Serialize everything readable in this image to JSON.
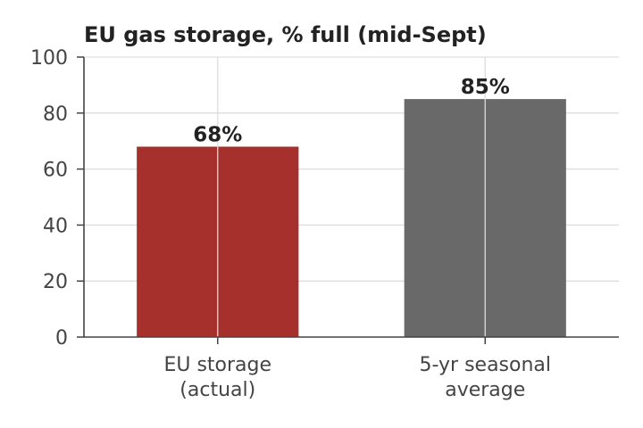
{
  "chart_data": {
    "type": "bar",
    "title": "EU gas storage, % full (mid-Sept)",
    "xlabel": "",
    "ylabel": "",
    "categories": [
      [
        "EU storage",
        "(actual)"
      ],
      [
        "5-yr seasonal",
        "average"
      ]
    ],
    "values": [
      68,
      85
    ],
    "data_labels": [
      "68%",
      "85%"
    ],
    "bar_colors": [
      "#a5302c",
      "#696969"
    ],
    "ylim": [
      0,
      100
    ],
    "yticks": [
      0,
      20,
      40,
      60,
      80,
      100
    ],
    "ytick_labels": [
      "0",
      "20",
      "40",
      "60",
      "80",
      "100"
    ],
    "grid": true,
    "legend": "none"
  }
}
